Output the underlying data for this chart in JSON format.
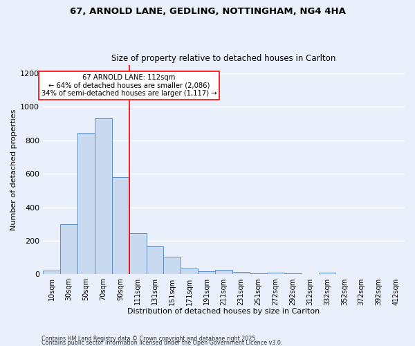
{
  "title_line1": "67, ARNOLD LANE, GEDLING, NOTTINGHAM, NG4 4HA",
  "title_line2": "Size of property relative to detached houses in Carlton",
  "xlabel": "Distribution of detached houses by size in Carlton",
  "ylabel": "Number of detached properties",
  "bar_categories": [
    "10sqm",
    "30sqm",
    "50sqm",
    "70sqm",
    "90sqm",
    "111sqm",
    "131sqm",
    "151sqm",
    "171sqm",
    "191sqm",
    "211sqm",
    "231sqm",
    "251sqm",
    "272sqm",
    "292sqm",
    "312sqm",
    "332sqm",
    "352sqm",
    "372sqm",
    "392sqm",
    "412sqm"
  ],
  "bar_values": [
    22,
    300,
    845,
    930,
    580,
    245,
    165,
    105,
    35,
    20,
    25,
    15,
    8,
    10,
    8,
    2,
    10,
    2,
    2,
    2,
    2
  ],
  "bar_color": "#c9d9f0",
  "bar_edge_color": "#5b8fc9",
  "vline_index": 5,
  "vline_color": "red",
  "ylim": [
    0,
    1250
  ],
  "yticks": [
    0,
    200,
    400,
    600,
    800,
    1000,
    1200
  ],
  "annotation_text": "67 ARNOLD LANE: 112sqm\n← 64% of detached houses are smaller (2,086)\n34% of semi-detached houses are larger (1,117) →",
  "annotation_box_color": "white",
  "annotation_box_edge_color": "red",
  "footnote1": "Contains HM Land Registry data © Crown copyright and database right 2025.",
  "footnote2": "Contains public sector information licensed under the Open Government Licence v3.0.",
  "background_color": "#eaf0fb",
  "grid_color": "white"
}
